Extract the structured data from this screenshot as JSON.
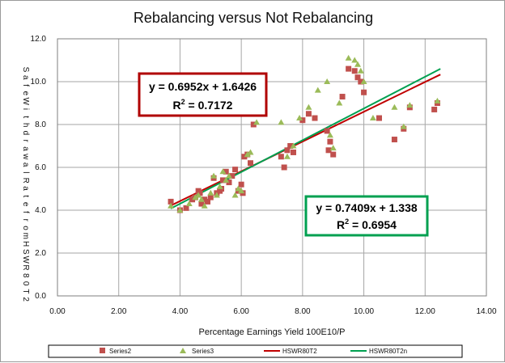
{
  "chart_data": {
    "type": "scatter",
    "title": "Rebalancing versus Not Rebalancing",
    "xlabel": "Percentage Earnings Yield 100E10/P",
    "ylabel": "Safe Withdrawal Rate from HSWR80T2",
    "xlim": [
      0,
      14
    ],
    "ylim": [
      0,
      12
    ],
    "xticks": [
      "0.00",
      "2.00",
      "4.00",
      "6.00",
      "8.00",
      "10.00",
      "12.00",
      "14.00"
    ],
    "yticks": [
      "0.0",
      "2.0",
      "4.0",
      "6.0",
      "8.0",
      "10.0",
      "12.0"
    ],
    "grid": true,
    "legend_position": "bottom",
    "series": [
      {
        "name": "Series2",
        "marker": "square",
        "color": "#c0504d",
        "x": [
          3.7,
          4.0,
          4.2,
          4.4,
          4.5,
          4.6,
          4.65,
          4.7,
          4.8,
          4.9,
          5.0,
          5.1,
          5.2,
          5.3,
          5.35,
          5.4,
          5.5,
          5.6,
          5.7,
          5.8,
          5.9,
          6.0,
          6.05,
          6.1,
          6.2,
          6.3,
          6.4,
          7.3,
          7.4,
          7.5,
          7.6,
          7.7,
          8.0,
          8.2,
          8.4,
          8.8,
          8.85,
          8.9,
          9.0,
          9.3,
          9.5,
          9.7,
          9.8,
          9.9,
          10.0,
          10.5,
          11.0,
          11.3,
          11.5,
          12.3,
          12.4
        ],
        "y": [
          4.4,
          4.0,
          4.1,
          4.5,
          4.6,
          4.9,
          4.8,
          4.3,
          4.5,
          4.4,
          4.6,
          5.5,
          4.8,
          4.9,
          5.0,
          5.4,
          5.8,
          5.3,
          5.6,
          5.9,
          4.9,
          5.2,
          4.8,
          6.5,
          6.6,
          6.2,
          8.0,
          6.5,
          6.0,
          6.8,
          7.0,
          6.7,
          8.2,
          8.5,
          8.3,
          7.7,
          6.8,
          7.2,
          6.6,
          9.3,
          10.6,
          10.5,
          10.2,
          10.0,
          9.5,
          8.3,
          7.3,
          7.8,
          8.8,
          8.7,
          9.0
        ]
      },
      {
        "name": "Series3",
        "marker": "triangle",
        "color": "#9bbb59",
        "x": [
          3.7,
          4.0,
          4.3,
          4.5,
          4.6,
          4.7,
          4.8,
          5.0,
          5.1,
          5.2,
          5.3,
          5.4,
          5.5,
          5.6,
          5.8,
          5.9,
          6.0,
          6.2,
          6.3,
          6.5,
          7.3,
          7.5,
          7.7,
          7.9,
          8.2,
          8.5,
          8.8,
          8.9,
          9.0,
          9.2,
          9.5,
          9.7,
          9.8,
          9.9,
          10.0,
          10.3,
          11.0,
          11.3,
          11.5,
          12.4
        ],
        "y": [
          4.2,
          4.0,
          4.3,
          4.6,
          4.7,
          4.5,
          4.2,
          4.8,
          5.6,
          4.7,
          5.1,
          5.8,
          5.4,
          5.6,
          4.7,
          5.0,
          4.9,
          6.6,
          6.7,
          8.1,
          8.1,
          6.5,
          7.0,
          8.3,
          8.8,
          9.6,
          10.0,
          7.5,
          6.9,
          9.0,
          11.1,
          11.0,
          10.8,
          10.5,
          10.0,
          8.3,
          8.8,
          7.9,
          8.9,
          9.1
        ]
      },
      {
        "name": "HSWR80T2",
        "type": "line",
        "color": "#c00000",
        "x": [
          3.7,
          12.5
        ],
        "y": [
          4.215,
          10.333
        ]
      },
      {
        "name": "HSWR80T2n",
        "type": "line",
        "color": "#00a050",
        "x": [
          3.7,
          12.5
        ],
        "y": [
          4.079,
          10.599
        ]
      }
    ],
    "annotations": [
      {
        "line1": "y = 0.6952x + 1.6426",
        "line2_prefix": "R",
        "line2_sup": "2",
        "line2_suffix": " = 0.7172",
        "box_color": "#b00000"
      },
      {
        "line1": "y = 0.7409x + 1.338",
        "line2_prefix": "R",
        "line2_sup": "2",
        "line2_suffix": " = 0.6954",
        "box_color": "#00a050"
      }
    ]
  }
}
